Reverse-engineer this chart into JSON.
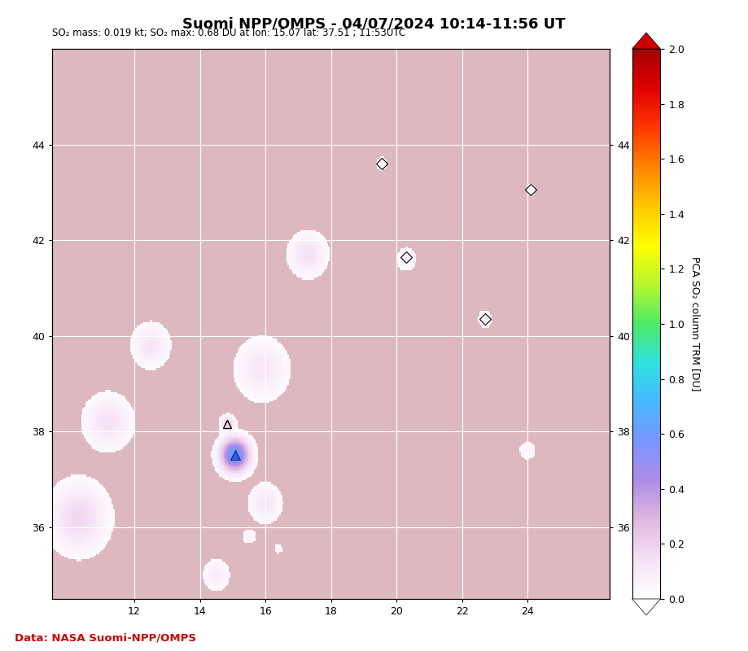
{
  "title": "Suomi NPP/OMPS - 04/07/2024 10:14-11:56 UT",
  "subtitle": "SO₂ mass: 0.019 kt; SO₂ max: 0.68 DU at lon: 15.07 lat: 37.51 ; 11:53UTC",
  "data_credit": "Data: NASA Suomi-NPP/OMPS",
  "lon_min": 9.5,
  "lon_max": 26.5,
  "lat_min": 34.5,
  "lat_max": 46.0,
  "xticks": [
    12,
    14,
    16,
    18,
    20,
    22,
    24
  ],
  "yticks": [
    36,
    38,
    40,
    42,
    44
  ],
  "cbar_label": "PCA SO₂ column TRM [DU]",
  "cbar_min": 0.0,
  "cbar_max": 2.0,
  "cbar_ticks": [
    0.0,
    0.2,
    0.4,
    0.6,
    0.8,
    1.0,
    1.2,
    1.4,
    1.6,
    1.8,
    2.0
  ],
  "land_color": "#ddb8c0",
  "ocean_color": "#c0c0d8",
  "grid_color": "white",
  "credit_color": "#cc0000",
  "etna_lon": 15.07,
  "etna_lat": 37.51,
  "volcano2_lon": 14.82,
  "volcano2_lat": 38.15,
  "so2_blobs": [
    {
      "lon": 15.07,
      "lat": 37.51,
      "slon": 0.28,
      "slat": 0.22,
      "amp": 0.68
    },
    {
      "lon": 14.85,
      "lat": 38.18,
      "slon": 0.13,
      "slat": 0.1,
      "amp": 0.22
    },
    {
      "lon": 15.9,
      "lat": 39.3,
      "slon": 0.5,
      "slat": 0.4,
      "amp": 0.12
    },
    {
      "lon": 17.3,
      "lat": 41.7,
      "slon": 0.35,
      "slat": 0.28,
      "amp": 0.15
    },
    {
      "lon": 20.3,
      "lat": 41.6,
      "slon": 0.18,
      "slat": 0.15,
      "amp": 0.1
    },
    {
      "lon": 22.7,
      "lat": 40.35,
      "slon": 0.14,
      "slat": 0.12,
      "amp": 0.08
    },
    {
      "lon": 19.55,
      "lat": 43.6,
      "slon": 0.12,
      "slat": 0.1,
      "amp": 0.07
    },
    {
      "lon": 24.1,
      "lat": 43.05,
      "slon": 0.1,
      "slat": 0.09,
      "amp": 0.07
    },
    {
      "lon": 24.0,
      "lat": 37.6,
      "slon": 0.18,
      "slat": 0.14,
      "amp": 0.06
    },
    {
      "lon": 15.5,
      "lat": 35.8,
      "slon": 0.14,
      "slat": 0.1,
      "amp": 0.07
    },
    {
      "lon": 16.4,
      "lat": 35.55,
      "slon": 0.1,
      "slat": 0.08,
      "amp": 0.05
    },
    {
      "lon": 12.5,
      "lat": 39.8,
      "slon": 0.35,
      "slat": 0.28,
      "amp": 0.13
    },
    {
      "lon": 11.2,
      "lat": 38.2,
      "slon": 0.45,
      "slat": 0.35,
      "amp": 0.14
    },
    {
      "lon": 10.3,
      "lat": 36.2,
      "slon": 0.55,
      "slat": 0.45,
      "amp": 0.18
    },
    {
      "lon": 14.5,
      "lat": 35.0,
      "slon": 0.25,
      "slat": 0.2,
      "amp": 0.1
    },
    {
      "lon": 16.0,
      "lat": 36.5,
      "slon": 0.3,
      "slat": 0.25,
      "amp": 0.12
    }
  ],
  "so2_threshold": 0.025,
  "diamonds": [
    {
      "lon": 19.55,
      "lat": 43.6
    },
    {
      "lon": 24.1,
      "lat": 43.05
    },
    {
      "lon": 20.3,
      "lat": 41.65
    },
    {
      "lon": 22.7,
      "lat": 40.35
    }
  ]
}
